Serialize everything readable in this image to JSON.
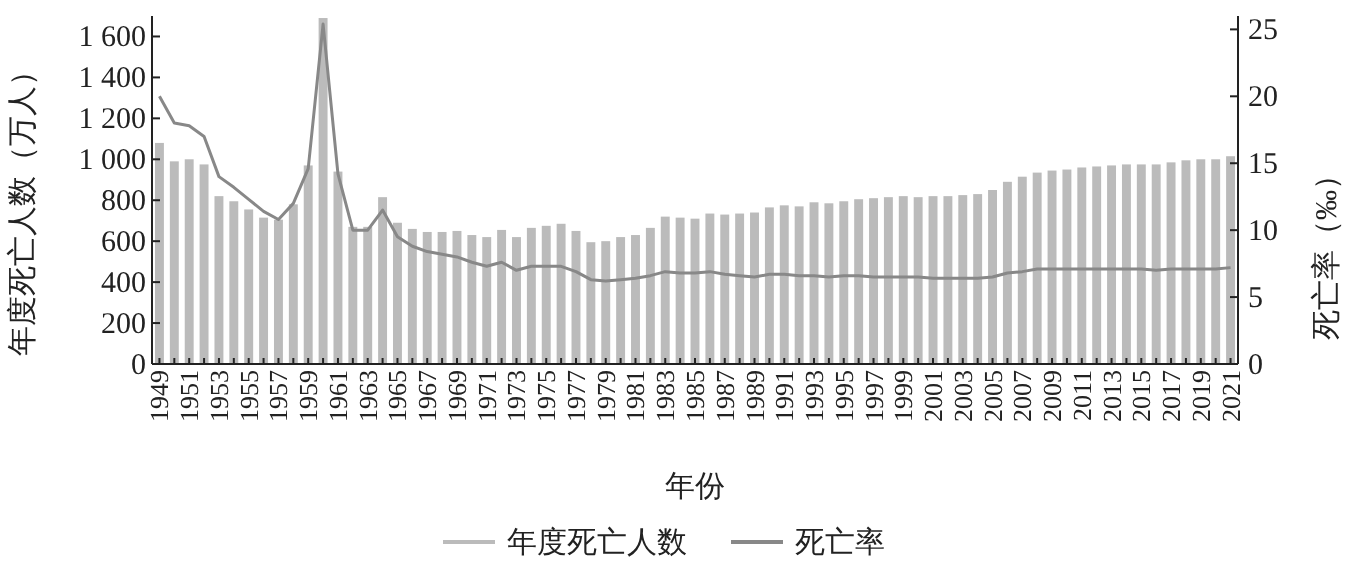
{
  "chart_data": {
    "type": "bar",
    "xlabel": "年份",
    "ylabel": "年度死亡人数（万人）",
    "y2label": "死亡率（‰）",
    "categories": [
      "1949",
      null,
      "1951",
      null,
      "1953",
      null,
      "1955",
      null,
      "1957",
      null,
      "1959",
      null,
      "1961",
      null,
      "1963",
      null,
      "1965",
      null,
      "1967",
      null,
      "1969",
      null,
      "1971",
      null,
      "1973",
      null,
      "1975",
      null,
      "1977",
      null,
      "1979",
      null,
      "1981",
      null,
      "1983",
      null,
      "1985",
      null,
      "1987",
      null,
      "1989",
      null,
      "1991",
      null,
      "1993",
      null,
      "1995",
      null,
      "1997",
      null,
      "1999",
      null,
      "2001",
      null,
      "2003",
      null,
      "2005",
      null,
      "2007",
      null,
      "2009",
      null,
      "2011",
      null,
      "2013",
      null,
      "2015",
      null,
      "2017",
      null,
      "2019",
      null,
      "2021"
    ],
    "series": [
      {
        "name": "年度死亡人数",
        "color": "#bbbbbb",
        "values": [
          1080,
          990,
          1000,
          975,
          820,
          795,
          755,
          715,
          705,
          780,
          970,
          1690,
          940,
          670,
          670,
          815,
          690,
          660,
          645,
          645,
          650,
          630,
          620,
          655,
          620,
          665,
          675,
          685,
          650,
          595,
          600,
          620,
          630,
          665,
          720,
          715,
          710,
          735,
          730,
          735,
          740,
          765,
          775,
          770,
          790,
          785,
          795,
          805,
          810,
          815,
          820,
          815,
          820,
          820,
          825,
          830,
          850,
          890,
          915,
          935,
          945,
          950,
          960,
          965,
          970,
          975,
          975,
          975,
          985,
          995,
          1000,
          1000,
          1015
        ]
      },
      {
        "name": "死亡率",
        "type": "line",
        "axis": "y2",
        "color": "#888888",
        "values": [
          20,
          18,
          17.8,
          17,
          14,
          13.2,
          12.3,
          11.4,
          10.8,
          12,
          14.6,
          25.4,
          14.2,
          10,
          10,
          11.5,
          9.5,
          8.8,
          8.4,
          8.2,
          8,
          7.6,
          7.3,
          7.6,
          7,
          7.3,
          7.3,
          7.3,
          6.9,
          6.3,
          6.2,
          6.3,
          6.4,
          6.6,
          6.9,
          6.8,
          6.8,
          6.9,
          6.7,
          6.6,
          6.5,
          6.7,
          6.7,
          6.6,
          6.6,
          6.5,
          6.6,
          6.6,
          6.5,
          6.5,
          6.5,
          6.5,
          6.4,
          6.4,
          6.4,
          6.4,
          6.5,
          6.8,
          6.9,
          7.1,
          7.1,
          7.1,
          7.1,
          7.1,
          7.1,
          7.1,
          7.1,
          7,
          7.1,
          7.1,
          7.1,
          7.1,
          7.2
        ]
      }
    ],
    "ylim": [
      0,
      1700
    ],
    "yticks": [
      0,
      200,
      400,
      600,
      800,
      {
        "value": 1000,
        "label": "1 000"
      },
      {
        "value": 1200,
        "label": "1 200"
      },
      {
        "value": 1400,
        "label": "1 400"
      },
      {
        "value": 1600,
        "label": "1 600"
      }
    ],
    "y2lim": [
      0,
      26
    ],
    "y2ticks": [
      0,
      5,
      10,
      15,
      20,
      25
    ],
    "grid": false,
    "legend": "bottom"
  }
}
